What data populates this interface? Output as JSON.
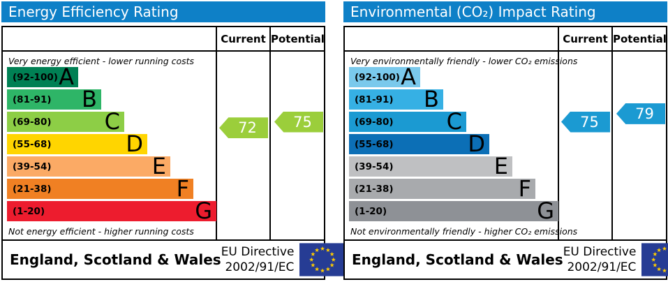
{
  "panels": [
    {
      "title": "Energy Efficiency Rating",
      "columns": {
        "current": "Current",
        "potential": "Potential"
      },
      "top_caption": "Very energy efficient - lower running costs",
      "bottom_caption": "Not energy efficient - higher running costs",
      "bands": [
        {
          "letter": "A",
          "range": "(92-100)",
          "min": 92,
          "max": 100,
          "color": "#008054"
        },
        {
          "letter": "B",
          "range": "(81-91)",
          "min": 81,
          "max": 91,
          "color": "#2eb567"
        },
        {
          "letter": "C",
          "range": "(69-80)",
          "min": 69,
          "max": 80,
          "color": "#8dce46"
        },
        {
          "letter": "D",
          "range": "(55-68)",
          "min": 55,
          "max": 68,
          "color": "#ffd500"
        },
        {
          "letter": "E",
          "range": "(39-54)",
          "min": 39,
          "max": 54,
          "color": "#fbaa65"
        },
        {
          "letter": "F",
          "range": "(21-38)",
          "min": 21,
          "max": 38,
          "color": "#f08023"
        },
        {
          "letter": "G",
          "range": "(1-20)",
          "min": 1,
          "max": 20,
          "color": "#ed1c2e"
        }
      ],
      "current": {
        "value": 72,
        "color": "#9bce3b"
      },
      "potential": {
        "value": 75,
        "color": "#9bce3b"
      },
      "footer": {
        "region": "England, Scotland & Wales",
        "directive_line1": "EU Directive",
        "directive_line2": "2002/91/EC"
      }
    },
    {
      "title": "Environmental (CO₂) Impact Rating",
      "columns": {
        "current": "Current",
        "potential": "Potential"
      },
      "top_caption": "Very environmentally friendly - lower CO₂ emissions",
      "bottom_caption": "Not environmentally friendly - higher CO₂ emissions",
      "bands": [
        {
          "letter": "A",
          "range": "(92-100)",
          "min": 92,
          "max": 100,
          "color": "#7ac9ec"
        },
        {
          "letter": "B",
          "range": "(81-91)",
          "min": 81,
          "max": 91,
          "color": "#36b0e4"
        },
        {
          "letter": "C",
          "range": "(69-80)",
          "min": 69,
          "max": 80,
          "color": "#1b9ad2"
        },
        {
          "letter": "D",
          "range": "(55-68)",
          "min": 55,
          "max": 68,
          "color": "#0c6fb6"
        },
        {
          "letter": "E",
          "range": "(39-54)",
          "min": 39,
          "max": 54,
          "color": "#bfc0c2"
        },
        {
          "letter": "F",
          "range": "(21-38)",
          "min": 21,
          "max": 38,
          "color": "#a8aaad"
        },
        {
          "letter": "G",
          "range": "(1-20)",
          "min": 1,
          "max": 20,
          "color": "#8e9196"
        }
      ],
      "current": {
        "value": 75,
        "color": "#1b9ad2"
      },
      "potential": {
        "value": 79,
        "color": "#1b9ad2"
      },
      "footer": {
        "region": "England, Scotland & Wales",
        "directive_line1": "EU Directive",
        "directive_line2": "2002/91/EC"
      }
    }
  ],
  "colors": {
    "title_bar": "#0e80c7",
    "eu_flag_blue": "#263c94",
    "eu_flag_star": "#ffcc00",
    "border": "#000000"
  },
  "chart_data": [
    {
      "type": "bar",
      "title": "Energy Efficiency Rating",
      "categories": [
        "A (92-100)",
        "B (81-91)",
        "C (69-80)",
        "D (55-68)",
        "E (39-54)",
        "F (21-38)",
        "G (1-20)"
      ],
      "series": [
        {
          "name": "Current",
          "values": [
            72
          ]
        },
        {
          "name": "Potential",
          "values": [
            75
          ]
        }
      ],
      "value_range": [
        1,
        100
      ],
      "annotations": [
        "Very energy efficient - lower running costs",
        "Not energy efficient - higher running costs",
        "England, Scotland & Wales",
        "EU Directive 2002/91/EC"
      ],
      "legend_position": "column headers top-right"
    },
    {
      "type": "bar",
      "title": "Environmental (CO₂) Impact Rating",
      "categories": [
        "A (92-100)",
        "B (81-91)",
        "C (69-80)",
        "D (55-68)",
        "E (39-54)",
        "F (21-38)",
        "G (1-20)"
      ],
      "series": [
        {
          "name": "Current",
          "values": [
            75
          ]
        },
        {
          "name": "Potential",
          "values": [
            79
          ]
        }
      ],
      "value_range": [
        1,
        100
      ],
      "annotations": [
        "Very environmentally friendly - lower CO₂ emissions",
        "Not environmentally friendly - higher CO₂ emissions",
        "England, Scotland & Wales",
        "EU Directive 2002/91/EC"
      ],
      "legend_position": "column headers top-right"
    }
  ]
}
